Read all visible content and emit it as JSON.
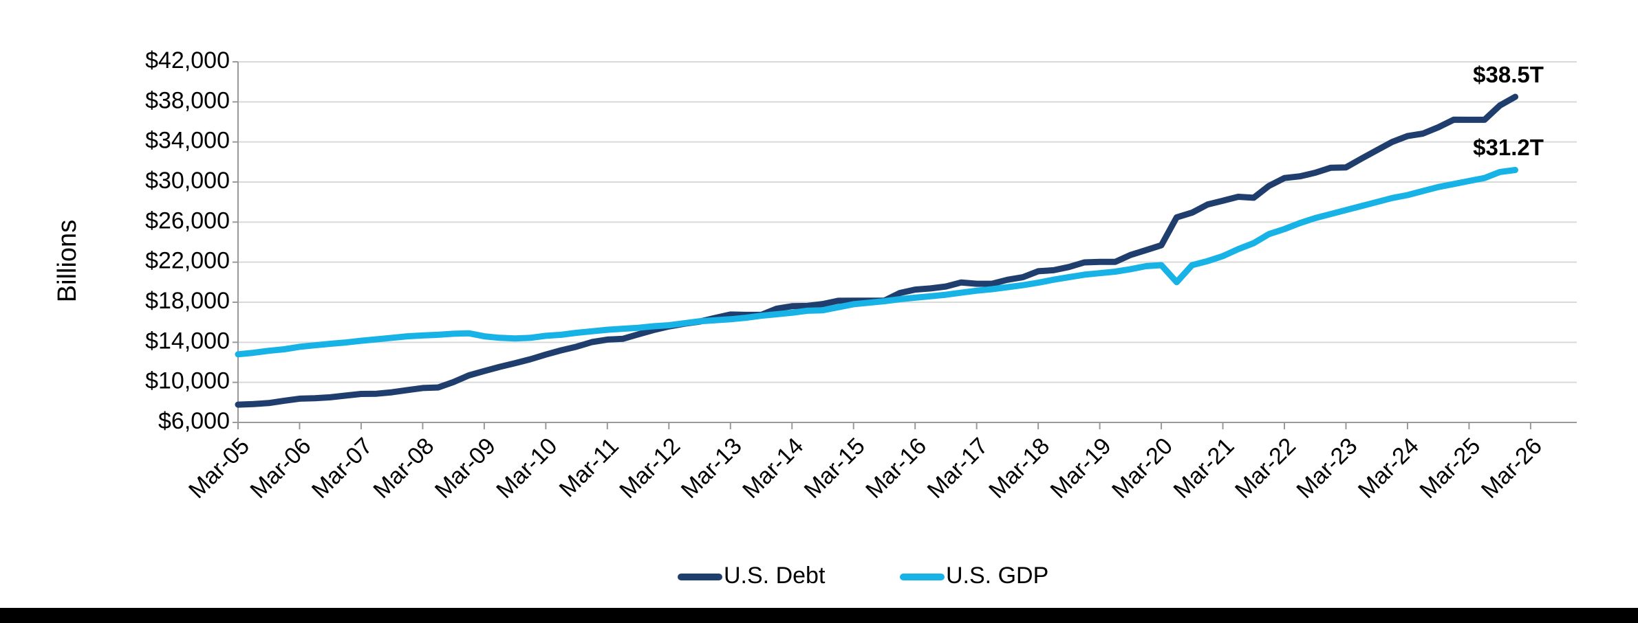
{
  "chart_data": {
    "type": "line",
    "y_axis_label": "Billions",
    "categories": [
      "Mar-05",
      null,
      null,
      null,
      "Mar-06",
      null,
      null,
      null,
      "Mar-07",
      null,
      null,
      null,
      "Mar-08",
      null,
      null,
      null,
      "Mar-09",
      null,
      null,
      null,
      "Mar-10",
      null,
      null,
      null,
      "Mar-11",
      null,
      null,
      null,
      "Mar-12",
      null,
      null,
      null,
      "Mar-13",
      null,
      null,
      null,
      "Mar-14",
      null,
      null,
      null,
      "Mar-15",
      null,
      null,
      null,
      "Mar-16",
      null,
      null,
      null,
      "Mar-17",
      null,
      null,
      null,
      "Mar-18",
      null,
      null,
      null,
      "Mar-19",
      null,
      null,
      null,
      "Mar-20",
      null,
      null,
      null,
      "Mar-21",
      null,
      null,
      null,
      "Mar-22",
      null,
      null,
      null,
      "Mar-23",
      null,
      null,
      null,
      "Mar-24",
      null,
      null,
      null,
      "Mar-25",
      null,
      null,
      null,
      "Mar-26",
      null,
      null,
      null
    ],
    "series": [
      {
        "name": "U.S. Debt",
        "color": "#1f3e6d",
        "values": [
          7776,
          7836,
          7933,
          8170,
          8371,
          8420,
          8507,
          8680,
          8849,
          8867,
          9008,
          9229,
          9437,
          9492,
          10025,
          10700,
          11127,
          11545,
          11910,
          12311,
          12773,
          13202,
          13562,
          14025,
          14270,
          14343,
          14790,
          15223,
          15582,
          15856,
          16066,
          16433,
          16771,
          16738,
          16738,
          17352,
          17601,
          17632,
          17824,
          18141,
          18152,
          18152,
          18151,
          18922,
          19264,
          19381,
          19573,
          19977,
          19846,
          19845,
          20245,
          20493,
          21090,
          21195,
          21516,
          21974,
          22028,
          22023,
          22719,
          23201,
          23687,
          26477,
          26945,
          27748,
          28133,
          28529,
          28428,
          29617,
          30401,
          30569,
          30929,
          31420,
          31459,
          32333,
          33167,
          34001,
          34587,
          34832,
          35465,
          36218,
          36215,
          36211,
          37637,
          38500,
          null,
          null,
          null,
          null
        ]
      },
      {
        "name": "U.S. GDP",
        "color": "#17b2e6",
        "values": [
          12800,
          12950,
          13150,
          13300,
          13550,
          13700,
          13850,
          13980,
          14150,
          14300,
          14450,
          14600,
          14680,
          14750,
          14850,
          14900,
          14600,
          14450,
          14380,
          14450,
          14650,
          14750,
          14950,
          15100,
          15250,
          15350,
          15450,
          15600,
          15700,
          15900,
          16100,
          16200,
          16300,
          16450,
          16650,
          16800,
          16950,
          17150,
          17200,
          17500,
          17800,
          17950,
          18100,
          18300,
          18450,
          18600,
          18750,
          18950,
          19150,
          19300,
          19500,
          19700,
          19950,
          20250,
          20500,
          20750,
          20900,
          21050,
          21300,
          21600,
          21700,
          20000,
          21700,
          22100,
          22600,
          23300,
          23900,
          24800,
          25300,
          25900,
          26400,
          26800,
          27200,
          27600,
          28000,
          28400,
          28700,
          29100,
          29500,
          29800,
          30100,
          30400,
          31000,
          31200,
          null,
          null,
          null,
          null
        ]
      }
    ],
    "annotations": [
      "$38.5T",
      "$31.2T"
    ],
    "ylim": [
      6000,
      42000
    ],
    "yticks": [
      {
        "value": 6000,
        "label": "$6,000"
      },
      {
        "value": 10000,
        "label": "$10,000"
      },
      {
        "value": 14000,
        "label": "$14,000"
      },
      {
        "value": 18000,
        "label": "$18,000"
      },
      {
        "value": 22000,
        "label": "$22,000"
      },
      {
        "value": 26000,
        "label": "$26,000"
      },
      {
        "value": 30000,
        "label": "$30,000"
      },
      {
        "value": 34000,
        "label": "$34,000"
      },
      {
        "value": 38000,
        "label": "$38,000"
      },
      {
        "value": 42000,
        "label": "$42,000"
      }
    ],
    "grid": true,
    "legend": "bottom"
  }
}
